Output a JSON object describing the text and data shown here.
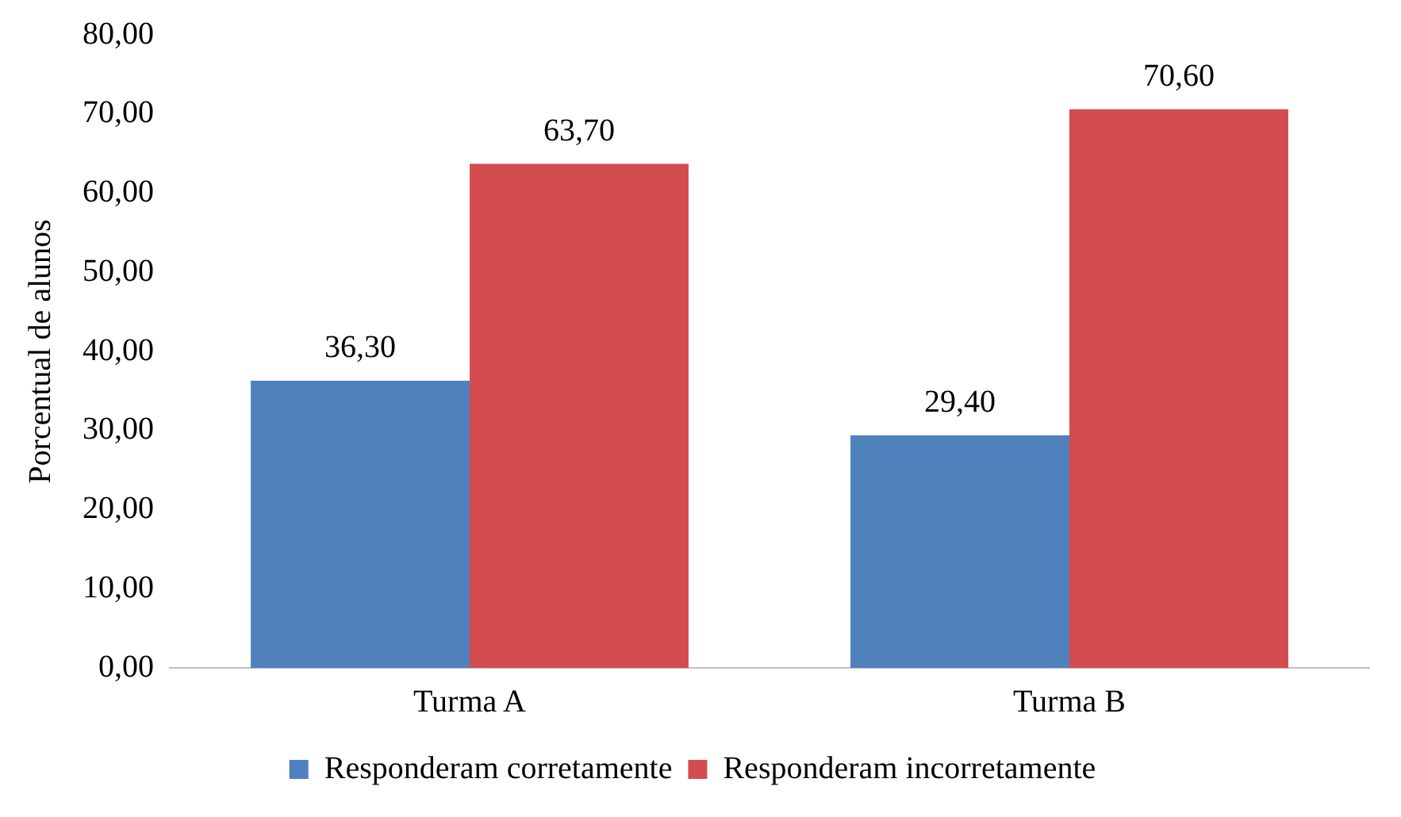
{
  "chart_data": {
    "type": "bar",
    "categories": [
      "Turma A",
      "Turma B"
    ],
    "series": [
      {
        "name": "Responderam corretamente",
        "color": "#4f81bd",
        "values": [
          36.3,
          29.4
        ]
      },
      {
        "name": "Responderam incorretamente",
        "color": "#d34c4e",
        "values": [
          63.7,
          70.6
        ]
      }
    ],
    "ylabel": "Porcentual de alunos",
    "ylim": [
      0,
      80
    ],
    "yticks": [
      {
        "value": 0,
        "label": "0,00"
      },
      {
        "value": 10,
        "label": "10,00"
      },
      {
        "value": 20,
        "label": "20,00"
      },
      {
        "value": 30,
        "label": "30,00"
      },
      {
        "value": 40,
        "label": "40,00"
      },
      {
        "value": 50,
        "label": "50,00"
      },
      {
        "value": 60,
        "label": "60,00"
      },
      {
        "value": 70,
        "label": "70,00"
      },
      {
        "value": 80,
        "label": "80,00"
      }
    ],
    "value_labels": [
      [
        "36,30",
        "29,40"
      ],
      [
        "63,70",
        "70,60"
      ]
    ],
    "legend": "bottom",
    "grid": false
  }
}
